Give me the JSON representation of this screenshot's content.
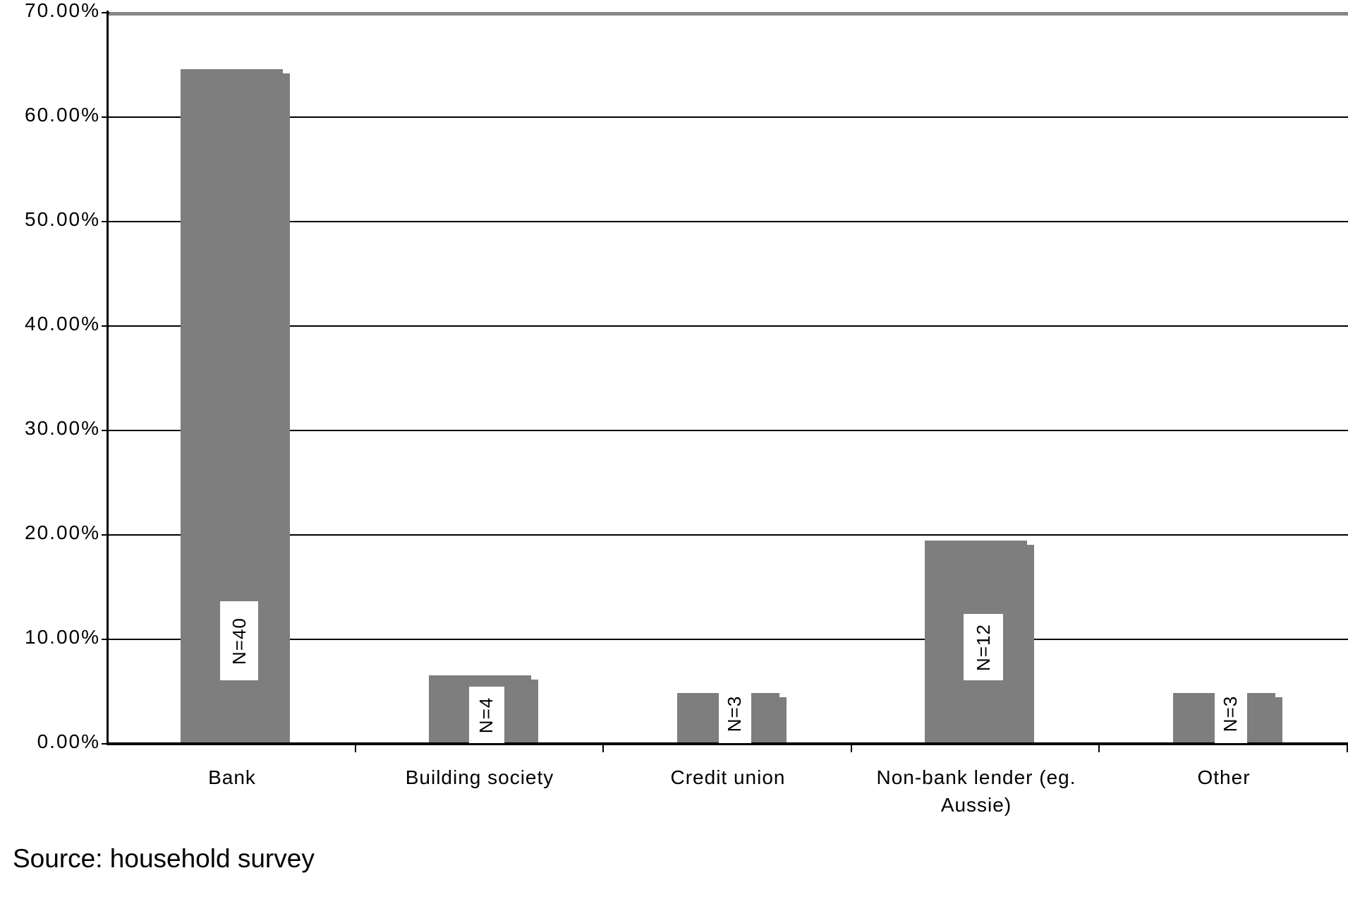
{
  "chart_data": {
    "type": "bar",
    "title": "",
    "xlabel": "",
    "ylabel": "",
    "categories": [
      "Bank",
      "Building society",
      "Credit union",
      "Non-bank lender (eg.\nAussie)",
      "Other"
    ],
    "values": [
      64.5,
      6.5,
      4.8,
      19.4,
      4.8
    ],
    "bar_labels": [
      "N=40",
      "N=4",
      "N=3",
      "N=12",
      "N=3"
    ],
    "counts": [
      40,
      4,
      3,
      12,
      3
    ],
    "ylim": [
      0,
      70
    ],
    "y_tick_labels": [
      "70.00%",
      "60.00%",
      "50.00%",
      "40.00%",
      "30.00%",
      "20.00%",
      "10.00%",
      "0.00%"
    ],
    "y_tick_values": [
      70,
      60,
      50,
      40,
      30,
      20,
      10,
      0
    ],
    "grid": "horizontal",
    "legend": "none",
    "bar_color": "#7e7e7e",
    "top_border_color": "#868686",
    "axis_color": "#000000",
    "label_box_color": "#ffffff"
  },
  "source_note": "Source: household survey"
}
